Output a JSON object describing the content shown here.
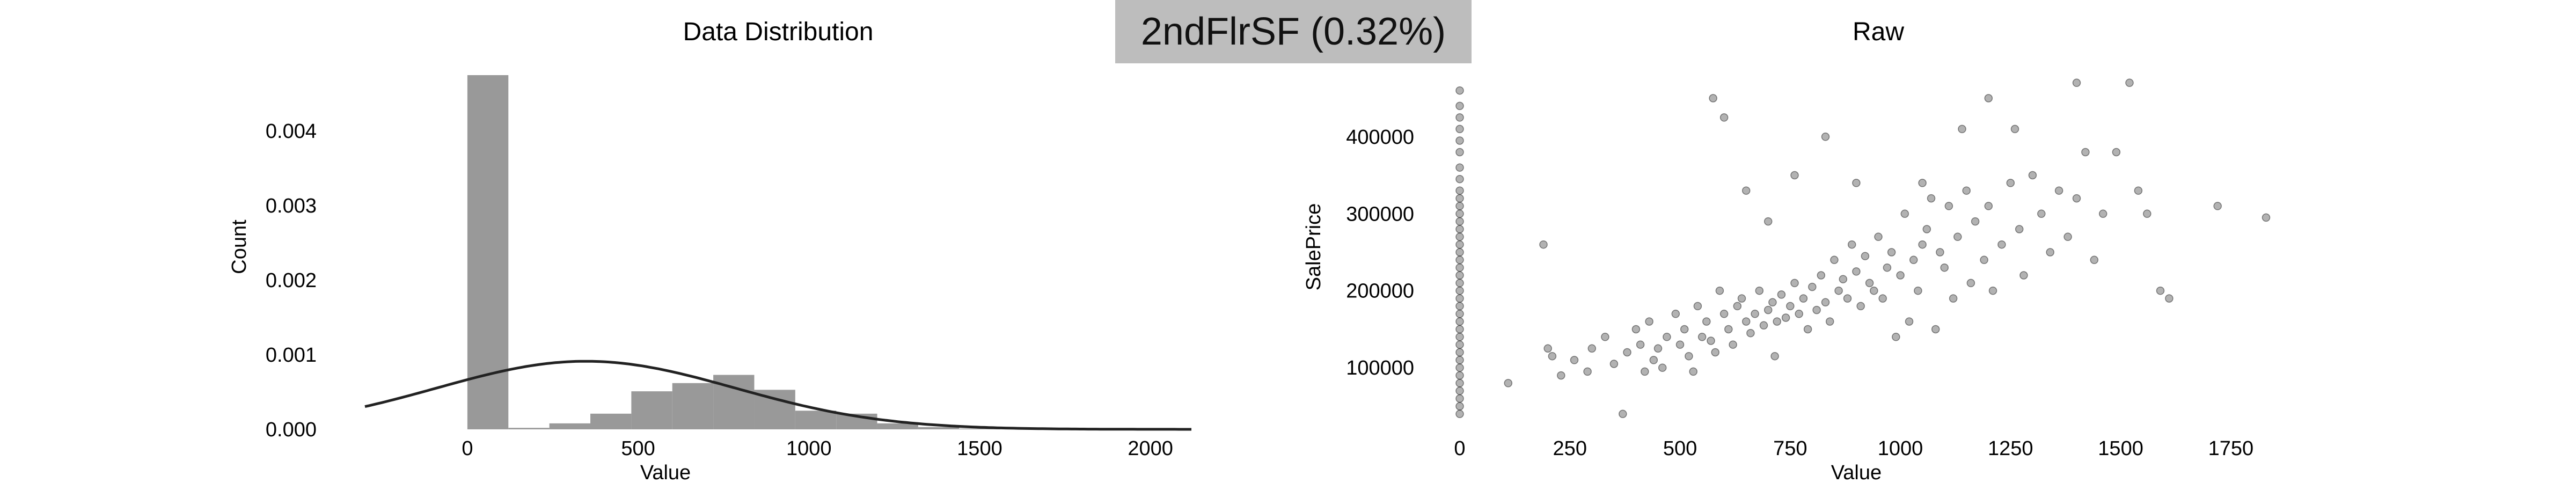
{
  "header": {
    "label": "2ndFlrSF (0.32%)",
    "background": "#bdbdbd"
  },
  "chart_data": [
    {
      "type": "bar",
      "title": "Data Distribution",
      "xlabel": "Value",
      "ylabel": "Count",
      "xlim": [
        -300,
        2120
      ],
      "ylim": [
        0,
        0.00475
      ],
      "xticks": [
        0,
        500,
        1000,
        1500,
        2000
      ],
      "xtick_labels": [
        "0",
        "500",
        "1000",
        "1500",
        "2000"
      ],
      "yticks": [
        0.0,
        0.001,
        0.002,
        0.003,
        0.004
      ],
      "ytick_labels": [
        "0.000",
        "0.001",
        "0.002",
        "0.003",
        "0.004"
      ],
      "grid": false,
      "bar_color": "#999999",
      "bins": [
        {
          "x0": 0,
          "x1": 120,
          "value": 0.00475
        },
        {
          "x0": 120,
          "x1": 240,
          "value": 2e-05
        },
        {
          "x0": 240,
          "x1": 360,
          "value": 8e-05
        },
        {
          "x0": 360,
          "x1": 480,
          "value": 0.00021
        },
        {
          "x0": 480,
          "x1": 600,
          "value": 0.00051
        },
        {
          "x0": 600,
          "x1": 720,
          "value": 0.00062
        },
        {
          "x0": 720,
          "x1": 840,
          "value": 0.00073
        },
        {
          "x0": 840,
          "x1": 960,
          "value": 0.00053
        },
        {
          "x0": 960,
          "x1": 1080,
          "value": 0.00025
        },
        {
          "x0": 1080,
          "x1": 1200,
          "value": 0.00021
        },
        {
          "x0": 1200,
          "x1": 1320,
          "value": 8e-05
        },
        {
          "x0": 1320,
          "x1": 1440,
          "value": 3e-05
        },
        {
          "x0": 1440,
          "x1": 1560,
          "value": 1e-05
        }
      ],
      "series": [
        {
          "type": "line",
          "kind": "normal_pdf_fit",
          "mean": 347,
          "std": 437,
          "color": "#222222"
        }
      ]
    },
    {
      "type": "scatter",
      "title": "Raw",
      "xlabel": "Value",
      "ylabel": "SalePrice",
      "xlim": [
        0,
        1900
      ],
      "ylim": [
        20000,
        480000
      ],
      "xticks": [
        0,
        250,
        500,
        750,
        1000,
        1250,
        1500,
        1750
      ],
      "xtick_labels": [
        "0",
        "250",
        "500",
        "750",
        "1000",
        "1250",
        "1500",
        "1750"
      ],
      "yticks": [
        100000,
        200000,
        300000,
        400000
      ],
      "ytick_labels": [
        "100000",
        "200000",
        "300000",
        "400000"
      ],
      "grid": false,
      "point_color": "#000000",
      "point_alpha": 0.3,
      "points": [
        [
          0,
          40000
        ],
        [
          0,
          50000
        ],
        [
          0,
          60000
        ],
        [
          0,
          70000
        ],
        [
          0,
          80000
        ],
        [
          0,
          90000
        ],
        [
          0,
          100000
        ],
        [
          0,
          110000
        ],
        [
          0,
          120000
        ],
        [
          0,
          130000
        ],
        [
          0,
          140000
        ],
        [
          0,
          150000
        ],
        [
          0,
          160000
        ],
        [
          0,
          170000
        ],
        [
          0,
          180000
        ],
        [
          0,
          190000
        ],
        [
          0,
          200000
        ],
        [
          0,
          210000
        ],
        [
          0,
          220000
        ],
        [
          0,
          230000
        ],
        [
          0,
          240000
        ],
        [
          0,
          250000
        ],
        [
          0,
          260000
        ],
        [
          0,
          270000
        ],
        [
          0,
          280000
        ],
        [
          0,
          290000
        ],
        [
          0,
          300000
        ],
        [
          0,
          310000
        ],
        [
          0,
          320000
        ],
        [
          0,
          330000
        ],
        [
          0,
          345000
        ],
        [
          0,
          360000
        ],
        [
          0,
          380000
        ],
        [
          0,
          395000
        ],
        [
          0,
          410000
        ],
        [
          0,
          425000
        ],
        [
          0,
          440000
        ],
        [
          0,
          460000
        ],
        [
          110,
          80000
        ],
        [
          190,
          260000
        ],
        [
          200,
          125000
        ],
        [
          210,
          115000
        ],
        [
          230,
          90000
        ],
        [
          260,
          110000
        ],
        [
          290,
          95000
        ],
        [
          300,
          125000
        ],
        [
          330,
          140000
        ],
        [
          350,
          105000
        ],
        [
          370,
          40000
        ],
        [
          380,
          120000
        ],
        [
          400,
          150000
        ],
        [
          410,
          130000
        ],
        [
          420,
          95000
        ],
        [
          430,
          160000
        ],
        [
          440,
          110000
        ],
        [
          450,
          125000
        ],
        [
          460,
          100000
        ],
        [
          470,
          140000
        ],
        [
          490,
          170000
        ],
        [
          500,
          130000
        ],
        [
          510,
          150000
        ],
        [
          520,
          115000
        ],
        [
          530,
          95000
        ],
        [
          540,
          180000
        ],
        [
          550,
          140000
        ],
        [
          560,
          160000
        ],
        [
          570,
          135000
        ],
        [
          575,
          450000
        ],
        [
          580,
          120000
        ],
        [
          590,
          200000
        ],
        [
          600,
          170000
        ],
        [
          600,
          425000
        ],
        [
          610,
          150000
        ],
        [
          620,
          130000
        ],
        [
          630,
          180000
        ],
        [
          640,
          190000
        ],
        [
          650,
          160000
        ],
        [
          660,
          145000
        ],
        [
          670,
          170000
        ],
        [
          680,
          200000
        ],
        [
          690,
          155000
        ],
        [
          700,
          175000
        ],
        [
          710,
          185000
        ],
        [
          715,
          115000
        ],
        [
          720,
          160000
        ],
        [
          730,
          195000
        ],
        [
          740,
          165000
        ],
        [
          750,
          180000
        ],
        [
          760,
          210000
        ],
        [
          770,
          170000
        ],
        [
          780,
          190000
        ],
        [
          790,
          150000
        ],
        [
          800,
          205000
        ],
        [
          810,
          175000
        ],
        [
          820,
          220000
        ],
        [
          830,
          185000
        ],
        [
          840,
          160000
        ],
        [
          850,
          240000
        ],
        [
          860,
          200000
        ],
        [
          870,
          215000
        ],
        [
          880,
          190000
        ],
        [
          890,
          260000
        ],
        [
          900,
          225000
        ],
        [
          910,
          180000
        ],
        [
          920,
          245000
        ],
        [
          930,
          210000
        ],
        [
          940,
          200000
        ],
        [
          950,
          270000
        ],
        [
          960,
          190000
        ],
        [
          970,
          230000
        ],
        [
          980,
          250000
        ],
        [
          990,
          140000
        ],
        [
          1000,
          220000
        ],
        [
          1010,
          300000
        ],
        [
          1020,
          160000
        ],
        [
          1030,
          240000
        ],
        [
          1040,
          200000
        ],
        [
          1050,
          260000
        ],
        [
          1060,
          280000
        ],
        [
          1070,
          320000
        ],
        [
          1080,
          150000
        ],
        [
          1090,
          250000
        ],
        [
          1100,
          230000
        ],
        [
          1110,
          310000
        ],
        [
          1120,
          190000
        ],
        [
          1130,
          270000
        ],
        [
          1150,
          330000
        ],
        [
          1160,
          210000
        ],
        [
          1170,
          290000
        ],
        [
          1190,
          240000
        ],
        [
          1200,
          310000
        ],
        [
          1210,
          200000
        ],
        [
          1230,
          260000
        ],
        [
          1250,
          340000
        ],
        [
          1270,
          280000
        ],
        [
          1280,
          220000
        ],
        [
          1300,
          350000
        ],
        [
          1320,
          300000
        ],
        [
          1340,
          250000
        ],
        [
          1360,
          330000
        ],
        [
          1380,
          270000
        ],
        [
          1400,
          320000
        ],
        [
          1420,
          380000
        ],
        [
          1440,
          240000
        ],
        [
          1460,
          300000
        ],
        [
          1490,
          380000
        ],
        [
          1520,
          470000
        ],
        [
          1540,
          330000
        ],
        [
          1560,
          300000
        ],
        [
          1590,
          200000
        ],
        [
          1610,
          190000
        ],
        [
          1720,
          310000
        ],
        [
          1830,
          295000
        ],
        [
          1140,
          410000
        ],
        [
          1200,
          450000
        ],
        [
          1260,
          410000
        ],
        [
          1400,
          470000
        ],
        [
          760,
          350000
        ],
        [
          830,
          400000
        ],
        [
          650,
          330000
        ],
        [
          700,
          290000
        ],
        [
          900,
          340000
        ],
        [
          1050,
          340000
        ]
      ]
    }
  ]
}
